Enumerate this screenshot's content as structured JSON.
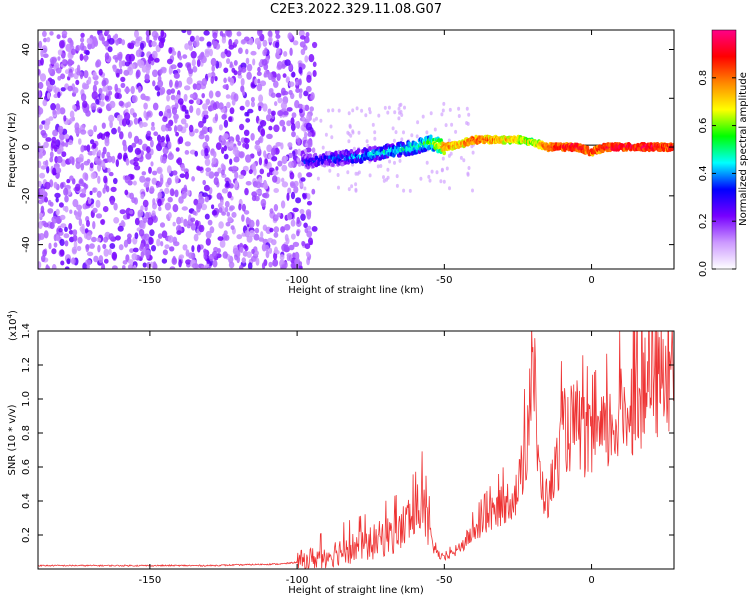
{
  "title": "C2E3.2022.329.11.08.G07",
  "colorbar": {
    "label": "Normalized spectral amplitude",
    "ticks": [
      "0.0",
      "0.2",
      "0.4",
      "0.6",
      "0.8"
    ],
    "tick_values": [
      0.0,
      0.2,
      0.4,
      0.6,
      0.8
    ],
    "range": [
      0,
      1
    ],
    "colors": [
      "#ffffff",
      "#cc99ff",
      "#7700ff",
      "#0000ff",
      "#00ffff",
      "#00ff00",
      "#ffff00",
      "#ff8800",
      "#ff0000",
      "#ff0088"
    ]
  },
  "chart_data": [
    {
      "type": "heatmap",
      "title": "C2E3.2022.329.11.08.G07",
      "xlabel": "Height of straight line (km)",
      "ylabel": "Frequency (Hz)",
      "xlim": [
        -188,
        28
      ],
      "ylim": [
        -50,
        48
      ],
      "xticks": [
        -150,
        -100,
        -50,
        0
      ],
      "xtick_labels": [
        "-150",
        "-100",
        "-50",
        "0"
      ],
      "yticks": [
        -40,
        -20,
        0,
        20,
        40
      ],
      "ytick_labels": [
        "-40",
        "-20",
        "0",
        "20",
        "40"
      ],
      "noise_region_x": [
        -188,
        -98
      ],
      "signal_track": {
        "x": [
          -98,
          -90,
          -80,
          -70,
          -60,
          -55,
          -50,
          -45,
          -40,
          -35,
          -30,
          -25,
          -20,
          -15,
          -10,
          -5,
          0,
          5,
          10,
          15,
          20,
          25,
          28
        ],
        "y": [
          -6,
          -5,
          -4,
          -2,
          0,
          2,
          0,
          1,
          3,
          3,
          3,
          3,
          2,
          0,
          0,
          0,
          -2,
          0,
          0,
          0,
          0,
          0,
          0
        ],
        "amplitude": [
          0.3,
          0.35,
          0.4,
          0.45,
          0.5,
          0.55,
          0.8,
          0.75,
          0.85,
          0.8,
          0.75,
          0.7,
          0.65,
          0.85,
          0.9,
          0.95,
          0.85,
          0.9,
          0.95,
          0.9,
          0.95,
          0.9,
          0.9
        ]
      }
    },
    {
      "type": "line",
      "xlabel": "Height of straight line (km)",
      "ylabel": "SNR (10 * v/v)",
      "scale_label": "(x10",
      "scale_exp": "4",
      "scale_close": ")",
      "xlim": [
        -188,
        28
      ],
      "ylim": [
        0,
        1.4
      ],
      "xticks": [
        -150,
        -100,
        -50,
        0
      ],
      "xtick_labels": [
        "-150",
        "-100",
        "-50",
        "0"
      ],
      "yticks": [
        0.2,
        0.4,
        0.6,
        0.8,
        1.0,
        1.2,
        1.4
      ],
      "ytick_labels": [
        "0.2",
        "0.4",
        "0.6",
        "0.8",
        "1.0",
        "1.2",
        "1.4"
      ],
      "color": "#ee3333",
      "series": [
        {
          "x": [
            -188,
            -160,
            -130,
            -105,
            -100,
            -95,
            -90,
            -85,
            -80,
            -75,
            -70,
            -65,
            -62,
            -60,
            -58,
            -55,
            -53,
            -50,
            -45,
            -40,
            -35,
            -30,
            -25,
            -22,
            -20,
            -18,
            -15,
            -12,
            -10,
            -5,
            0,
            5,
            10,
            15,
            20,
            25,
            28
          ],
          "y": [
            0.02,
            0.02,
            0.02,
            0.03,
            0.04,
            0.06,
            0.08,
            0.11,
            0.13,
            0.15,
            0.19,
            0.22,
            0.3,
            0.28,
            0.4,
            0.2,
            0.1,
            0.06,
            0.12,
            0.22,
            0.3,
            0.38,
            0.45,
            0.75,
            1.35,
            0.55,
            0.4,
            0.6,
            0.8,
            0.85,
            0.72,
            0.8,
            0.9,
            1.0,
            1.05,
            1.15,
            1.2
          ]
        }
      ]
    }
  ]
}
